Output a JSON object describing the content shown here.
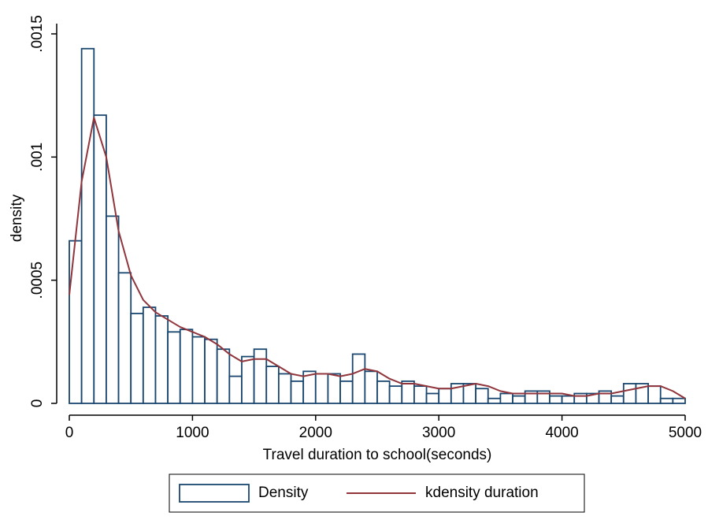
{
  "chart_data": {
    "type": "histogram",
    "x_label": "Travel duration to school(seconds)",
    "y_label": "density",
    "bins": [
      0,
      100,
      200,
      300,
      400,
      500,
      600,
      700,
      800,
      900,
      1000,
      1100,
      1200,
      1300,
      1400,
      1500,
      1600,
      1700,
      1800,
      1900,
      2000,
      2100,
      2200,
      2300,
      2400,
      2500,
      2600,
      2700,
      2800,
      2900,
      3000,
      3100,
      3200,
      3300,
      3400,
      3500,
      3600,
      3700,
      3800,
      3900,
      4000,
      4100,
      4200,
      4300,
      4400,
      4500,
      4600,
      4700,
      4800,
      4900,
      5000
    ],
    "series": [
      {
        "name": "Density",
        "type": "histogram",
        "color": "#1a476f",
        "values": [
          0.00066,
          0.00144,
          0.00117,
          0.00076,
          0.00053,
          0.000365,
          0.00039,
          0.000355,
          0.00029,
          0.0003,
          0.00027,
          0.00026,
          0.00022,
          0.00011,
          0.00019,
          0.00022,
          0.00015,
          0.00012,
          9e-05,
          0.00013,
          0.00012,
          0.00012,
          9e-05,
          0.0002,
          0.00013,
          9e-05,
          7e-05,
          9e-05,
          7e-05,
          4e-05,
          6e-05,
          8e-05,
          8e-05,
          6e-05,
          2e-05,
          4e-05,
          3e-05,
          5e-05,
          5e-05,
          3e-05,
          3e-05,
          4e-05,
          4e-05,
          5e-05,
          3e-05,
          8e-05,
          8e-05,
          7e-05,
          2e-05,
          2e-05
        ]
      },
      {
        "name": "kdensity duration",
        "type": "line",
        "color": "#90353b",
        "x": [
          0,
          100,
          200,
          300,
          400,
          500,
          600,
          700,
          800,
          900,
          1000,
          1100,
          1200,
          1300,
          1400,
          1500,
          1600,
          1700,
          1800,
          1900,
          2000,
          2100,
          2200,
          2300,
          2400,
          2500,
          2600,
          2700,
          2800,
          2900,
          3000,
          3100,
          3200,
          3300,
          3400,
          3500,
          3600,
          3700,
          3800,
          3900,
          4000,
          4100,
          4200,
          4300,
          4400,
          4500,
          4600,
          4700,
          4800,
          4900,
          5000
        ],
        "values": [
          0.00044,
          0.0009,
          0.00116,
          0.001,
          0.0007,
          0.00052,
          0.00042,
          0.00037,
          0.00034,
          0.00031,
          0.00029,
          0.00027,
          0.00024,
          0.0002,
          0.00017,
          0.00018,
          0.00018,
          0.00015,
          0.00012,
          0.00011,
          0.00012,
          0.00012,
          0.00011,
          0.00012,
          0.00014,
          0.00013,
          0.0001,
          8e-05,
          8e-05,
          7e-05,
          6e-05,
          6e-05,
          7e-05,
          8e-05,
          7e-05,
          5e-05,
          4e-05,
          4e-05,
          4e-05,
          4e-05,
          4e-05,
          3e-05,
          3e-05,
          4e-05,
          4e-05,
          5e-05,
          6e-05,
          7e-05,
          7e-05,
          5e-05,
          2e-05
        ]
      }
    ],
    "xlim": [
      0,
      5000
    ],
    "xticks": [
      0,
      1000,
      2000,
      3000,
      4000,
      5000
    ],
    "ylim": [
      0,
      0.0015
    ],
    "yticks": [
      0,
      {
        "value": 0.0005,
        "label": ".0005"
      },
      {
        "value": 0.001,
        "label": ".001"
      },
      {
        "value": 0.0015,
        "label": ".0015"
      }
    ],
    "grid": false,
    "legend": "bottom"
  }
}
